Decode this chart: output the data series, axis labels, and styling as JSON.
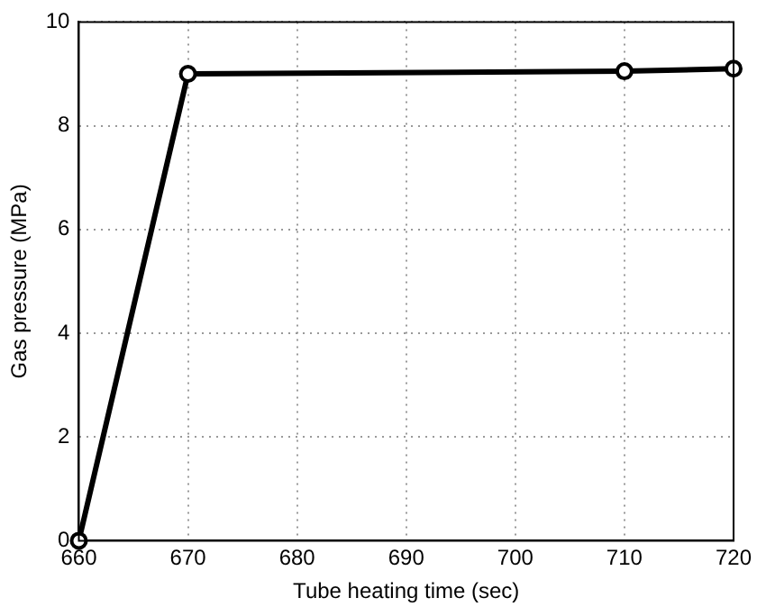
{
  "chart_data": {
    "type": "line",
    "xlabel": "Tube heating time (sec)",
    "ylabel": "Gas pressure (MPa)",
    "x": [
      660,
      670,
      710,
      720
    ],
    "series": [
      {
        "color": "#000000",
        "values": [
          0,
          9.0,
          9.05,
          9.1
        ]
      }
    ],
    "xlim": [
      660,
      720
    ],
    "xticks": [
      660,
      670,
      680,
      690,
      700,
      710,
      720
    ],
    "ylim": [
      0,
      10
    ],
    "yticks": [
      0,
      2,
      4,
      6,
      8,
      10
    ],
    "grid": true,
    "marker": "circle",
    "line_style": "solid",
    "legend": false
  }
}
